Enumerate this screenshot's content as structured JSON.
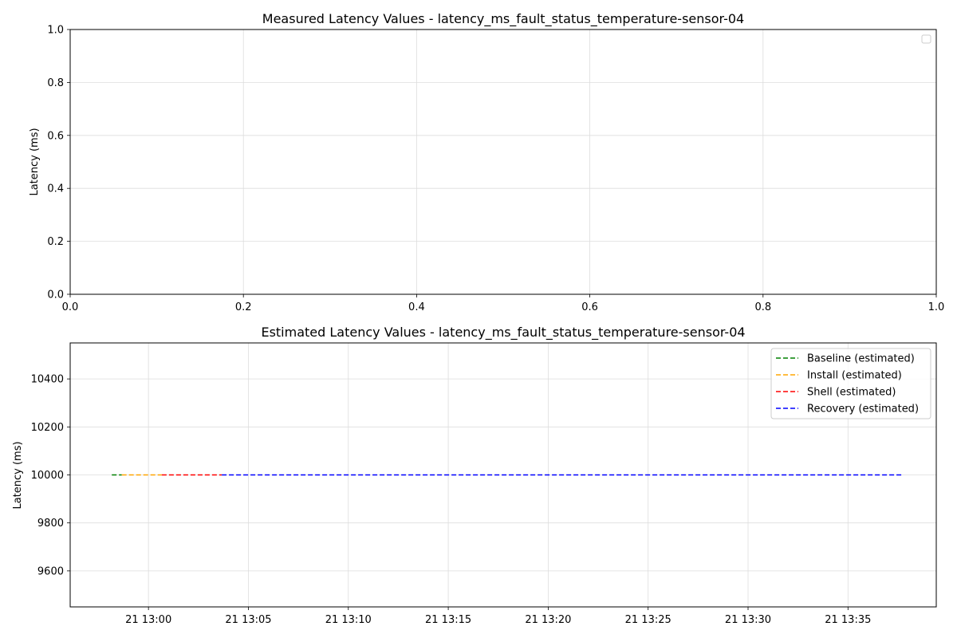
{
  "chart_data": [
    {
      "type": "line",
      "title": "Measured Latency Values - latency_ms_fault_status_temperature-sensor-04",
      "xlabel": "",
      "ylabel": "Latency (ms)",
      "xlim": [
        0.0,
        1.0
      ],
      "ylim": [
        0.0,
        1.0
      ],
      "xticks": [
        "0.0",
        "0.2",
        "0.4",
        "0.6",
        "0.8",
        "1.0"
      ],
      "yticks": [
        "0.0",
        "0.2",
        "0.4",
        "0.6",
        "0.8",
        "1.0"
      ],
      "grid": true,
      "legend": "top-right (empty)",
      "series": []
    },
    {
      "type": "line",
      "title": "Estimated Latency Values - latency_ms_fault_status_temperature-sensor-04",
      "xlabel": "",
      "ylabel": "Latency (ms)",
      "xlim": [
        "21 12:56:05",
        "21 13:39:25"
      ],
      "ylim": [
        9450,
        10550
      ],
      "xticks": [
        "21 13:00",
        "21 13:05",
        "21 13:10",
        "21 13:15",
        "21 13:20",
        "21 13:25",
        "21 13:30",
        "21 13:35"
      ],
      "yticks": [
        "9600",
        "9800",
        "10000",
        "10200",
        "10400"
      ],
      "grid": true,
      "legend": "top-right",
      "series": [
        {
          "name": "Baseline (estimated)",
          "color": "#008000",
          "style": "dashed",
          "x": [
            "21 12:58:10",
            "21 12:58:40"
          ],
          "values": [
            10000,
            10000
          ]
        },
        {
          "name": "Install (estimated)",
          "color": "#ffa500",
          "style": "dashed",
          "x": [
            "21 12:58:40",
            "21 13:00:40"
          ],
          "values": [
            10000,
            10000
          ]
        },
        {
          "name": "Shell (estimated)",
          "color": "#ff0000",
          "style": "dashed",
          "x": [
            "21 13:00:40",
            "21 13:03:40"
          ],
          "values": [
            10000,
            10000
          ]
        },
        {
          "name": "Recovery (estimated)",
          "color": "#0000ff",
          "style": "dashed",
          "x": [
            "21 13:03:40",
            "21 13:37:40"
          ],
          "values": [
            10000,
            10000
          ]
        }
      ]
    }
  ]
}
